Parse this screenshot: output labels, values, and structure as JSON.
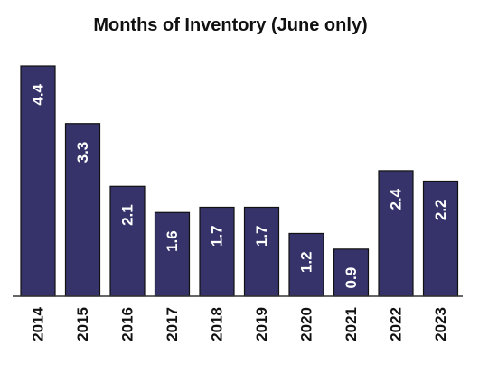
{
  "chart_data": {
    "type": "bar",
    "title": "Months of Inventory (June only)",
    "xlabel": "",
    "ylabel": "",
    "categories": [
      "2014",
      "2015",
      "2016",
      "2017",
      "2018",
      "2019",
      "2020",
      "2021",
      "2022",
      "2023"
    ],
    "values": [
      4.4,
      3.3,
      2.1,
      1.6,
      1.7,
      1.7,
      1.2,
      0.9,
      2.4,
      2.2
    ],
    "data_labels": [
      "4.4",
      "3.3",
      "2.1",
      "1.6",
      "1.7",
      "1.7",
      "1.2",
      "0.9",
      "2.4",
      "2.2"
    ],
    "ylim": [
      0,
      4.4
    ],
    "grid": false,
    "legend": "none",
    "colors": {
      "bar": "#35336a",
      "bar_outline": "#111111",
      "label_inside": "#ffffff",
      "label_outside": "#111111",
      "axis": "#333333"
    }
  }
}
